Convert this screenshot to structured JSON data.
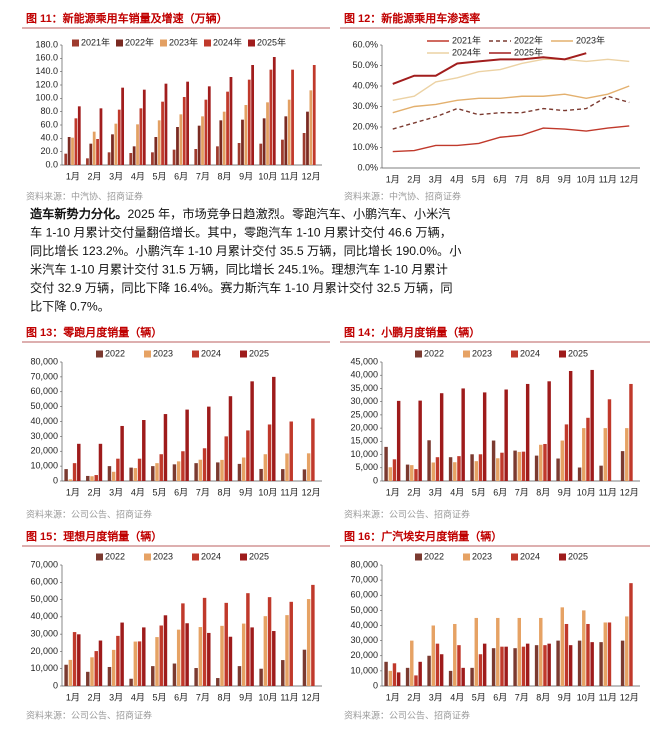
{
  "chart_data": [
    {
      "type": "bar",
      "title": "图 11：新能源乘用车销量及增速（万辆）",
      "source": "资料来源：中汽协、招商证券",
      "legend": "upper left",
      "categories": [
        "1月",
        "2月",
        "3月",
        "4月",
        "5月",
        "6月",
        "7月",
        "8月",
        "9月",
        "10月",
        "11月",
        "12月"
      ],
      "ylim": [
        0,
        180
      ],
      "yticks": [
        {
          "value": 0,
          "label": "0.0"
        },
        {
          "value": 20,
          "label": "20.0"
        },
        {
          "value": 40,
          "label": "40.0"
        },
        {
          "value": 60,
          "label": "60.0"
        },
        {
          "value": 80,
          "label": "80.0"
        },
        {
          "value": 100,
          "label": "100.0"
        },
        {
          "value": 120,
          "label": "120.0"
        },
        {
          "value": 140,
          "label": "140.0"
        },
        {
          "value": 160,
          "label": "160.0"
        },
        {
          "value": 180,
          "label": "180.0"
        }
      ],
      "series": [
        {
          "name": "2021年",
          "color": "#9e3b2e",
          "values": [
            17,
            10,
            19,
            18,
            19,
            23,
            24,
            28,
            33,
            32,
            38,
            48
          ]
        },
        {
          "name": "2022年",
          "color": "#7a2a22",
          "values": [
            42,
            32,
            46,
            28,
            42,
            57,
            59,
            67,
            68,
            70,
            73,
            80
          ]
        },
        {
          "name": "2023年",
          "color": "#e3a063",
          "values": [
            41,
            50,
            62,
            61,
            67,
            76,
            73,
            80,
            90,
            94,
            98,
            112
          ]
        },
        {
          "name": "2024年",
          "color": "#c0392b",
          "values": [
            70,
            39,
            83,
            85,
            95,
            102,
            98,
            110,
            128,
            143,
            143,
            150
          ]
        },
        {
          "name": "2025年",
          "color": "#a11d1d",
          "values": [
            88,
            85,
            116,
            113,
            122,
            125,
            118,
            132,
            150,
            162,
            null,
            null
          ]
        }
      ]
    },
    {
      "type": "line",
      "title": "图 12：新能源乘用车渗透率",
      "source": "资料来源：中汽协、招商证券",
      "legend": "upper center",
      "categories": [
        "1月",
        "2月",
        "3月",
        "4月",
        "5月",
        "6月",
        "7月",
        "8月",
        "9月",
        "10月",
        "11月",
        "12月"
      ],
      "ylim": [
        0,
        60
      ],
      "yticks": [
        {
          "value": 0,
          "label": "0.0%"
        },
        {
          "value": 10,
          "label": "10.0%"
        },
        {
          "value": 20,
          "label": "20.0%"
        },
        {
          "value": 30,
          "label": "30.0%"
        },
        {
          "value": 40,
          "label": "40.0%"
        },
        {
          "value": 50,
          "label": "50.0%"
        },
        {
          "value": 60,
          "label": "60.0%"
        }
      ],
      "series": [
        {
          "name": "2021年",
          "color": "#c0392b",
          "dashed": false,
          "values": [
            8,
            8.5,
            11,
            11,
            12,
            15,
            16,
            19.5,
            19,
            18,
            19.5,
            20.5
          ]
        },
        {
          "name": "2022年",
          "color": "#7b3a30",
          "dashed": true,
          "values": [
            19,
            22,
            25,
            29,
            26,
            27,
            27,
            29,
            28,
            29,
            35,
            32
          ]
        },
        {
          "name": "2023年",
          "color": "#e3b06e",
          "dashed": false,
          "values": [
            27,
            30,
            31,
            33,
            34,
            34,
            35,
            35,
            36,
            34,
            36,
            40
          ]
        },
        {
          "name": "2024年",
          "color": "#ecd2a4",
          "dashed": false,
          "values": [
            33,
            35,
            42,
            44,
            47,
            48,
            51,
            53,
            53,
            52,
            53,
            52
          ]
        },
        {
          "name": "2025年",
          "color": "#a11d1d",
          "dashed": false,
          "values": [
            41,
            45,
            45,
            51,
            52,
            53,
            53,
            54,
            53,
            56,
            null,
            null
          ]
        }
      ]
    },
    {
      "type": "bar",
      "title": "图 13：零跑月度销量（辆）",
      "source": "资料来源：公司公告、招商证券",
      "legend": "upper center",
      "categories": [
        "1月",
        "2月",
        "3月",
        "4月",
        "5月",
        "6月",
        "7月",
        "8月",
        "9月",
        "10月",
        "11月",
        "12月"
      ],
      "ylim": [
        0,
        80000
      ],
      "yticks": [
        0,
        {
          "value": 10000,
          "label": "10,000"
        },
        {
          "value": 20000,
          "label": "20,000"
        },
        {
          "value": 30000,
          "label": "30,000"
        },
        {
          "value": 40000,
          "label": "40,000"
        },
        {
          "value": 50000,
          "label": "50,000"
        },
        {
          "value": 60000,
          "label": "60,000"
        },
        {
          "value": 70000,
          "label": "70,000"
        },
        {
          "value": 80000,
          "label": "80,000"
        }
      ],
      "series": [
        {
          "name": "2022",
          "color": "#7b3a30",
          "values": [
            8000,
            3400,
            10000,
            9000,
            10000,
            11200,
            12000,
            12500,
            11500,
            8100,
            8000,
            7800
          ]
        },
        {
          "name": "2023",
          "color": "#e6a264",
          "values": [
            1100,
            3200,
            6200,
            8700,
            12000,
            13200,
            14300,
            14200,
            15800,
            18000,
            18500,
            18600
          ]
        },
        {
          "name": "2024",
          "color": "#c0392b",
          "values": [
            12000,
            4000,
            15000,
            15000,
            18000,
            20000,
            22000,
            30000,
            34000,
            38000,
            40000,
            42000
          ]
        },
        {
          "name": "2025",
          "color": "#9e1b1b",
          "values": [
            25000,
            25000,
            37000,
            41000,
            45000,
            48000,
            50000,
            57000,
            67000,
            70000,
            null,
            null
          ]
        }
      ]
    },
    {
      "type": "bar",
      "title": "图 14：小鹏月度销量（辆）",
      "source": "资料来源：公司公告、招商证券",
      "legend": "upper center",
      "categories": [
        "1月",
        "2月",
        "3月",
        "4月",
        "5月",
        "6月",
        "7月",
        "8月",
        "9月",
        "10月",
        "11月",
        "12月"
      ],
      "ylim": [
        0,
        45000
      ],
      "yticks": [
        0,
        {
          "value": 5000,
          "label": "5,000"
        },
        {
          "value": 10000,
          "label": "10,000"
        },
        {
          "value": 15000,
          "label": "15,000"
        },
        {
          "value": 20000,
          "label": "20,000"
        },
        {
          "value": 25000,
          "label": "25,000"
        },
        {
          "value": 30000,
          "label": "30,000"
        },
        {
          "value": 35000,
          "label": "35,000"
        },
        {
          "value": 40000,
          "label": "40,000"
        },
        {
          "value": 45000,
          "label": "45,000"
        }
      ],
      "series": [
        {
          "name": "2022",
          "color": "#7b3a30",
          "values": [
            12900,
            6200,
            15400,
            9000,
            10100,
            15300,
            11500,
            9600,
            8500,
            5100,
            5800,
            11300
          ]
        },
        {
          "name": "2023",
          "color": "#e6a264",
          "values": [
            5200,
            6000,
            7000,
            7100,
            7500,
            8600,
            11000,
            13700,
            15300,
            20000,
            20000,
            20000
          ]
        },
        {
          "name": "2024",
          "color": "#c0392b",
          "values": [
            8200,
            4500,
            9000,
            9400,
            10100,
            10700,
            11100,
            14000,
            21400,
            23900,
            30900,
            36700
          ]
        },
        {
          "name": "2025",
          "color": "#9e1b1b",
          "values": [
            30300,
            30400,
            33200,
            35000,
            33500,
            34600,
            36700,
            37700,
            41600,
            42000,
            null,
            null
          ]
        }
      ]
    },
    {
      "type": "bar",
      "title": "图 15：理想月度销量（辆）",
      "source": "资料来源：公司公告、招商证券",
      "legend": "upper center",
      "categories": [
        "1月",
        "2月",
        "3月",
        "4月",
        "5月",
        "6月",
        "7月",
        "8月",
        "9月",
        "10月",
        "11月",
        "12月"
      ],
      "ylim": [
        0,
        70000
      ],
      "yticks": [
        0,
        {
          "value": 10000,
          "label": "10,000"
        },
        {
          "value": 20000,
          "label": "20,000"
        },
        {
          "value": 30000,
          "label": "30,000"
        },
        {
          "value": 40000,
          "label": "40,000"
        },
        {
          "value": 50000,
          "label": "50,000"
        },
        {
          "value": 60000,
          "label": "60,000"
        },
        {
          "value": 70000,
          "label": "70,000"
        }
      ],
      "series": [
        {
          "name": "2022",
          "color": "#7b3a30",
          "values": [
            12300,
            8200,
            11000,
            4200,
            11500,
            13000,
            10400,
            4600,
            11500,
            10000,
            15000,
            21000
          ]
        },
        {
          "name": "2023",
          "color": "#e6a264",
          "values": [
            15100,
            16600,
            20900,
            25700,
            28300,
            32600,
            34100,
            34800,
            36100,
            40400,
            41000,
            50300
          ]
        },
        {
          "name": "2024",
          "color": "#c0392b",
          "values": [
            31200,
            20200,
            29000,
            25800,
            35000,
            47800,
            51000,
            48100,
            53700,
            51400,
            48700,
            58500
          ]
        },
        {
          "name": "2025",
          "color": "#9e1b1b",
          "values": [
            29900,
            26300,
            36700,
            33900,
            40900,
            36300,
            30700,
            28500,
            33900,
            31800,
            null,
            null
          ]
        }
      ]
    },
    {
      "type": "bar",
      "title": "图 16：广汽埃安月度销量（辆）",
      "source": "资料来源：公司公告、招商证券",
      "legend": "upper center",
      "categories": [
        "1月",
        "2月",
        "3月",
        "4月",
        "5月",
        "6月",
        "7月",
        "8月",
        "9月",
        "10月",
        "11月",
        "12月"
      ],
      "ylim": [
        0,
        80000
      ],
      "yticks": [
        0,
        {
          "value": 10000,
          "label": "10,000"
        },
        {
          "value": 20000,
          "label": "20,000"
        },
        {
          "value": 30000,
          "label": "30,000"
        },
        {
          "value": 40000,
          "label": "40,000"
        },
        {
          "value": 50000,
          "label": "50,000"
        },
        {
          "value": 60000,
          "label": "60,000"
        },
        {
          "value": 70000,
          "label": "70,000"
        },
        {
          "value": 80000,
          "label": "80,000"
        }
      ],
      "series": [
        {
          "name": "2022",
          "color": "#7b3a30",
          "values": [
            16000,
            12000,
            20000,
            10000,
            12000,
            25000,
            25000,
            27000,
            30000,
            30000,
            29000,
            30000
          ]
        },
        {
          "name": "2023",
          "color": "#e6a264",
          "values": [
            10000,
            30000,
            40000,
            41000,
            45000,
            45000,
            45000,
            45000,
            52000,
            50000,
            42000,
            46000
          ]
        },
        {
          "name": "2024",
          "color": "#c0392b",
          "values": [
            15000,
            7000,
            28000,
            27000,
            21000,
            26000,
            26000,
            27000,
            41000,
            41000,
            42000,
            68000
          ]
        },
        {
          "name": "2025",
          "color": "#9e1b1b",
          "values": [
            9000,
            16000,
            21000,
            12000,
            28000,
            26000,
            28000,
            28000,
            27000,
            29000,
            null,
            null
          ]
        }
      ]
    }
  ],
  "paragraph": {
    "lead": "造车新势力分化。",
    "lines": [
      "2025 年，市场竞争日趋激烈。零跑汽车、小鹏汽车、小米汽",
      "车 1-10 月累计交付量翻倍增长。其中，零跑汽车 1-10 月累计交付 46.6 万辆，",
      "同比增长 123.2%。小鹏汽车 1-10 月累计交付 35.5 万辆，同比增长 190.0%。小",
      "米汽车 1-10 月累计交付 31.5 万辆，同比增长 245.1%。理想汽车 1-10 月累计",
      "交付 32.9 万辆，同比下降 16.4%。赛力斯汽车 1-10 月累计交付 32.5 万辆，同",
      "比下降 0.7%。"
    ]
  }
}
